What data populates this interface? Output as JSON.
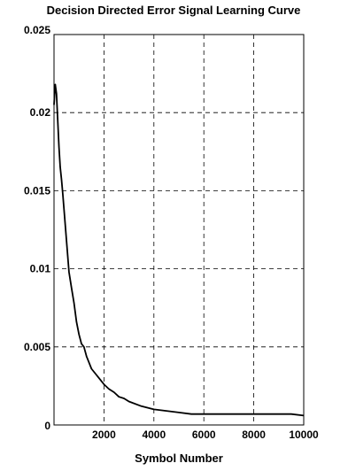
{
  "chart_data": {
    "type": "line",
    "title": "Decision Directed Error Signal Learning Curve",
    "xlabel": "Symbol Number",
    "ylabel": "",
    "xlim": [
      0,
      10000
    ],
    "ylim": [
      0,
      0.025
    ],
    "grid": true,
    "x_ticks": [
      2000,
      4000,
      6000,
      8000,
      10000
    ],
    "x_tick_labels": [
      "2000",
      "4000",
      "6000",
      "8000",
      "10000"
    ],
    "y_ticks": [
      0,
      0.005,
      0.01,
      0.015,
      0.02,
      0.025
    ],
    "y_tick_labels": [
      "0",
      "0.005",
      "0.01",
      "0.015",
      "0.02",
      "0.025"
    ],
    "series": [
      {
        "color": "#000000",
        "x": [
          0,
          50,
          100,
          150,
          200,
          250,
          300,
          350,
          400,
          500,
          600,
          700,
          800,
          900,
          1000,
          1100,
          1200,
          1300,
          1400,
          1500,
          1600,
          1800,
          2000,
          2200,
          2400,
          2600,
          2800,
          3000,
          3500,
          4000,
          4500,
          5000,
          5500,
          6000,
          6500,
          7000,
          7500,
          8000,
          8500,
          9000,
          9500,
          10000
        ],
        "y": [
          0.0205,
          0.0218,
          0.0212,
          0.0195,
          0.0178,
          0.0165,
          0.0157,
          0.0148,
          0.0138,
          0.0118,
          0.0098,
          0.0088,
          0.0078,
          0.0066,
          0.0058,
          0.0052,
          0.005,
          0.0044,
          0.004,
          0.0036,
          0.0034,
          0.003,
          0.0026,
          0.0023,
          0.0021,
          0.0018,
          0.0017,
          0.0015,
          0.0012,
          0.001,
          0.0009,
          0.0008,
          0.0007,
          0.0007,
          0.0007,
          0.0007,
          0.0007,
          0.0007,
          0.0007,
          0.0007,
          0.0007,
          0.0006
        ]
      }
    ]
  }
}
